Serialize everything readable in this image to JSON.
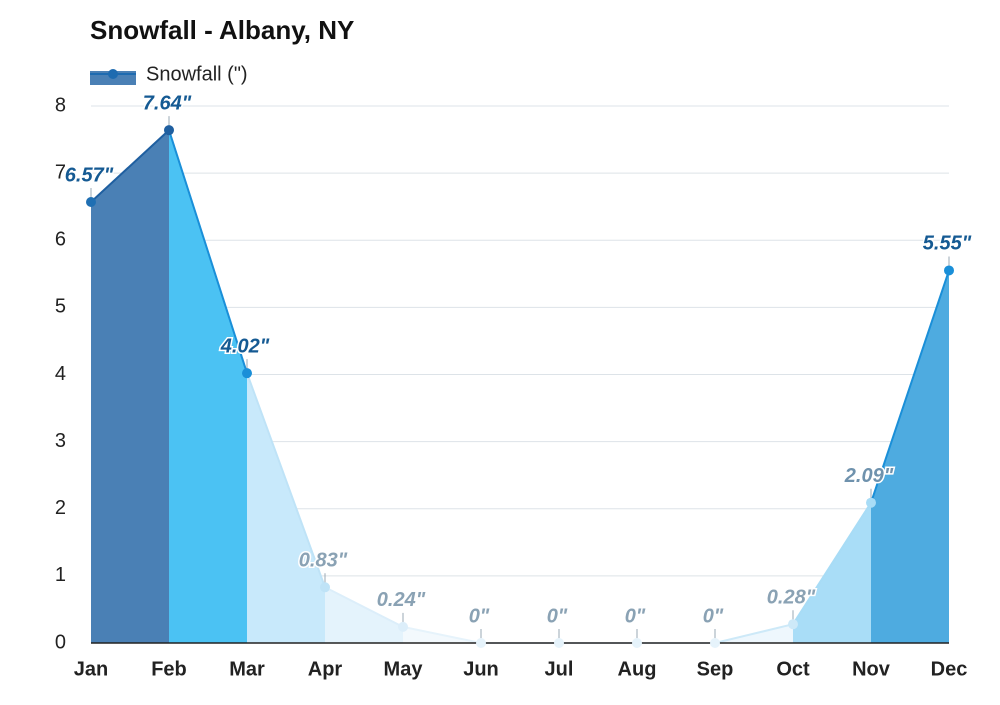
{
  "chart_data": {
    "type": "area",
    "title": "Snowfall - Albany, NY",
    "categories": [
      "Jan",
      "Feb",
      "Mar",
      "Apr",
      "May",
      "Jun",
      "Jul",
      "Aug",
      "Sep",
      "Oct",
      "Nov",
      "Dec"
    ],
    "series": [
      {
        "name": "Snowfall (\")",
        "color": "#1e6bb0",
        "values": [
          6.57,
          7.64,
          4.02,
          0.83,
          0.24,
          0,
          0,
          0,
          0,
          0.28,
          2.09,
          5.55
        ],
        "value_labels": [
          "6.57\"",
          "7.64\"",
          "4.02\"",
          "0.83\"",
          "0.24\"",
          "0\"",
          "0\"",
          "0\"",
          "0\"",
          "0.28\"",
          "2.09\"",
          "5.55\""
        ],
        "segment_colors": [
          "#4a80b5",
          "#4bc2f3",
          "#c8e9fb",
          "#e4f3fc",
          "#f3f9fd",
          "#f7fbfe",
          "#f7fbfe",
          "#f7fbfe",
          "#eef7fd",
          "#a9ddf7",
          "#4eabe0"
        ],
        "point_colors": [
          "#1f6fb3",
          "#1f5fa0",
          "#1a8fd8",
          "#bfe3f7",
          "#dceefa",
          "#e6f3fb",
          "#e6f3fb",
          "#e6f3fb",
          "#e6f3fb",
          "#cde9f8",
          "#a8dcf6",
          "#1a8fd8"
        ],
        "label_colors": [
          "#155a93",
          "#155a93",
          "#155a93",
          "#8aa2b4",
          "#8aa2b4",
          "#8aa2b4",
          "#8aa2b4",
          "#8aa2b4",
          "#8aa2b4",
          "#8aa2b4",
          "#6f92ad",
          "#155a93"
        ]
      }
    ],
    "ylim": [
      0,
      8
    ],
    "yticks": [
      0,
      1,
      2,
      3,
      4,
      5,
      6,
      7,
      8
    ],
    "grid": true
  }
}
